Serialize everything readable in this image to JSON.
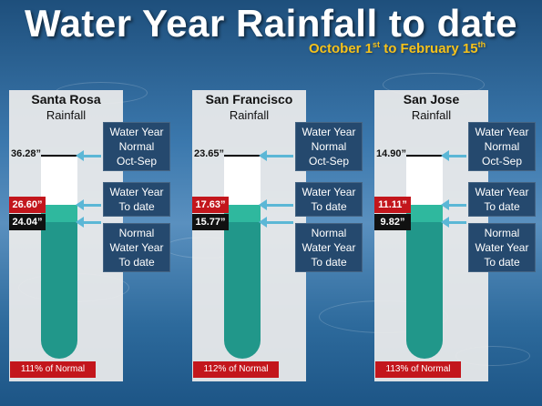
{
  "title": "Water Year Rainfall to date",
  "subtitle": {
    "text": "October 1",
    "sup1": "st",
    "mid": " to February 15",
    "sup2": "th"
  },
  "labels": {
    "normal": [
      "Water Year",
      "Normal",
      "Oct-Sep"
    ],
    "todate": [
      "Water Year",
      "To date"
    ],
    "normal_todate": [
      "Normal",
      "Water Year",
      "To date"
    ]
  },
  "stations": [
    {
      "city": "Santa Rosa",
      "sub": "Rainfall",
      "normal": "36.28”",
      "todate": "26.60”",
      "normal_todate": "24.04”",
      "pct": "111% of Normal",
      "pct_value": 111
    },
    {
      "city": "San Francisco",
      "sub": "Rainfall",
      "normal": "23.65”",
      "todate": "17.63”",
      "normal_todate": "15.77”",
      "pct": "112% of Normal",
      "pct_value": 112
    },
    {
      "city": "San Jose",
      "sub": "Rainfall",
      "normal": "14.90”",
      "todate": "11.11”",
      "normal_todate": "9.82”",
      "pct": "113% of Normal",
      "pct_value": 113
    }
  ],
  "colors": {
    "red": "#c3161c",
    "black": "#111111",
    "tube": "#21978a",
    "tube_light": "#2fb89e",
    "arrow": "#5bb7d6",
    "label_bg": "#25496e",
    "subtitle": "#f6c21b"
  }
}
